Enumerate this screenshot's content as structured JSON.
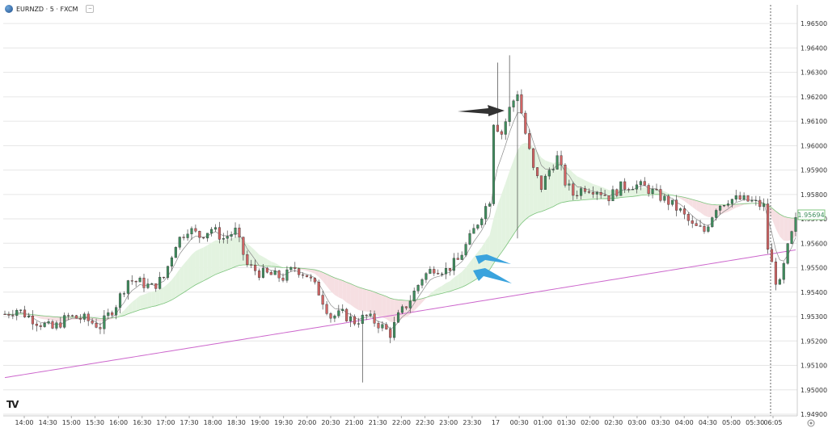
{
  "header": {
    "symbol_label": "EURNZD · 5 · FXCM"
  },
  "chart_data": {
    "type": "candlestick",
    "x_ticks": [
      "14:00",
      "14:30",
      "15:00",
      "15:30",
      "16:00",
      "16:30",
      "17:00",
      "17:30",
      "18:00",
      "18:30",
      "19:00",
      "19:30",
      "20:00",
      "20:30",
      "21:00",
      "21:30",
      "22:00",
      "22:30",
      "23:00",
      "23:30",
      "17",
      "00:30",
      "01:00",
      "01:30",
      "02:00",
      "02:30",
      "03:00",
      "03:30",
      "04:00",
      "04:30",
      "05:00",
      "05:30",
      "06:05"
    ],
    "y_ticks": [
      "1.96500",
      "1.96400",
      "1.96300",
      "1.96200",
      "1.96100",
      "1.96000",
      "1.95900",
      "1.95800",
      "1.95700",
      "1.95600",
      "1.95500",
      "1.95400",
      "1.95300",
      "1.95200",
      "1.95100",
      "1.95000",
      "1.94900"
    ],
    "ylim": [
      1.949,
      1.9655
    ],
    "current_price": "1.95694",
    "colors": {
      "up": "#3f8e5e",
      "down": "#d16464",
      "fast_ma": "#8a8a8a",
      "slow_ma": "#7cc47c",
      "long_ma": "#cc66cc",
      "cloud_bull": "#e3f3e0",
      "cloud_bear": "#f6dfe2",
      "arrow_dark": "#333333",
      "arrow_blue": "#3aa3dd"
    },
    "close_path": [
      [
        0,
        1.9531
      ],
      [
        3,
        1.9533
      ],
      [
        8,
        1.9528
      ],
      [
        12,
        1.9525
      ],
      [
        16,
        1.953
      ],
      [
        20,
        1.9529
      ],
      [
        24,
        1.9526
      ],
      [
        28,
        1.9535
      ],
      [
        31,
        1.9545
      ],
      [
        34,
        1.9544
      ],
      [
        37,
        1.9542
      ],
      [
        40,
        1.9546
      ],
      [
        43,
        1.956
      ],
      [
        46,
        1.9566
      ],
      [
        49,
        1.9563
      ],
      [
        52,
        1.9566
      ],
      [
        55,
        1.9562
      ],
      [
        58,
        1.9565
      ],
      [
        61,
        1.9551
      ],
      [
        64,
        1.9548
      ],
      [
        67,
        1.9547
      ],
      [
        70,
        1.9546
      ],
      [
        73,
        1.955
      ],
      [
        76,
        1.9547
      ],
      [
        79,
        1.954
      ],
      [
        82,
        1.953
      ],
      [
        85,
        1.9531
      ],
      [
        88,
        1.9528
      ],
      [
        91,
        1.953
      ],
      [
        94,
        1.9527
      ],
      [
        97,
        1.9523
      ],
      [
        99,
        1.953
      ],
      [
        102,
        1.9537
      ],
      [
        105,
        1.9546
      ],
      [
        108,
        1.955
      ],
      [
        111,
        1.9549
      ],
      [
        114,
        1.9553
      ],
      [
        117,
        1.9562
      ],
      [
        120,
        1.9572
      ],
      [
        122,
        1.9578
      ],
      [
        123,
        1.961
      ],
      [
        125,
        1.9605
      ],
      [
        127,
        1.9615
      ],
      [
        129,
        1.9622
      ],
      [
        131,
        1.9605
      ],
      [
        133,
        1.959
      ],
      [
        135,
        1.9583
      ],
      [
        137,
        1.959
      ],
      [
        139,
        1.9595
      ],
      [
        141,
        1.9585
      ],
      [
        143,
        1.958
      ],
      [
        146,
        1.9583
      ],
      [
        149,
        1.9582
      ],
      [
        152,
        1.9579
      ],
      [
        155,
        1.9583
      ],
      [
        158,
        1.9584
      ],
      [
        161,
        1.9583
      ],
      [
        164,
        1.958
      ],
      [
        167,
        1.9577
      ],
      [
        170,
        1.9573
      ],
      [
        173,
        1.9567
      ],
      [
        176,
        1.9565
      ],
      [
        179,
        1.9575
      ],
      [
        182,
        1.9578
      ],
      [
        185,
        1.9578
      ],
      [
        188,
        1.9577
      ],
      [
        191,
        1.9575
      ],
      [
        192,
        1.9558
      ],
      [
        194,
        1.9545
      ],
      [
        195,
        1.9543
      ],
      [
        197,
        1.9558
      ],
      [
        199,
        1.9569
      ]
    ]
  }
}
